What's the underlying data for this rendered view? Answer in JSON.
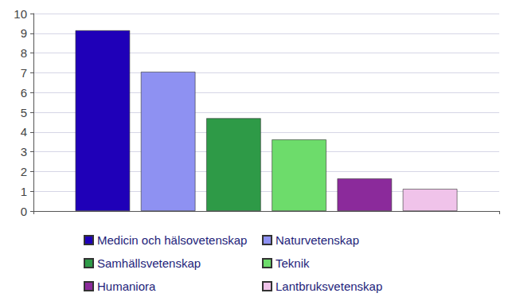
{
  "chart_data": {
    "type": "bar",
    "categories": [
      null
    ],
    "series": [
      {
        "name": "Medicin och hälsovetenskap",
        "color": "#1f00b8",
        "values": [
          9.15
        ]
      },
      {
        "name": "Naturvetenskap",
        "color": "#8e91f2",
        "values": [
          7.05
        ]
      },
      {
        "name": "Samhällsvetenskap",
        "color": "#2e9a47",
        "values": [
          4.7
        ]
      },
      {
        "name": "Teknik",
        "color": "#6ddc6b",
        "values": [
          3.62
        ]
      },
      {
        "name": "Humaniora",
        "color": "#8b2a9b",
        "values": [
          1.65
        ]
      },
      {
        "name": "Lantbruksvetenskap",
        "color": "#f0c3ea",
        "values": [
          1.12
        ]
      }
    ],
    "ylim": [
      0,
      10
    ],
    "yticks": [
      0,
      1,
      2,
      3,
      4,
      5,
      6,
      7,
      8,
      9,
      10
    ],
    "grid": true,
    "legend": "bottom",
    "tick_labels": "y"
  }
}
